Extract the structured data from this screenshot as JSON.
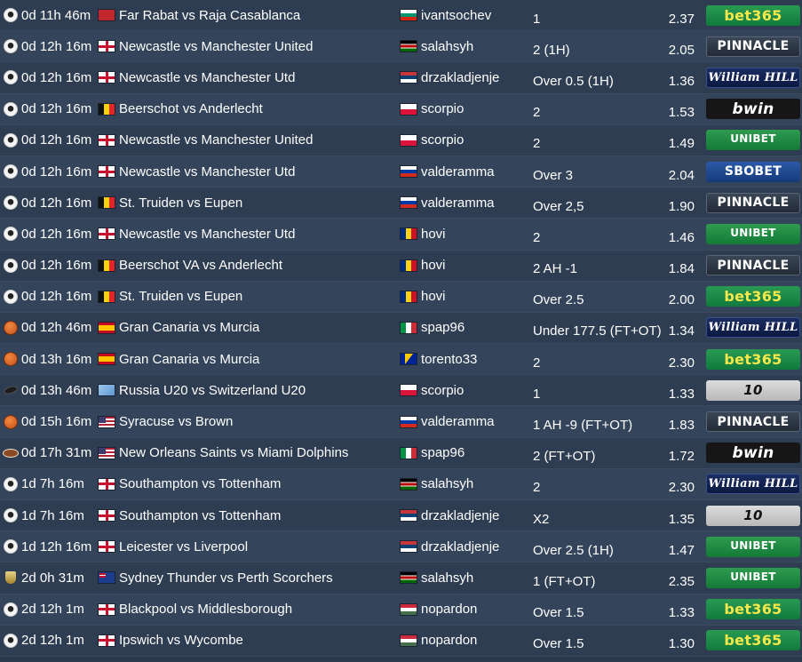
{
  "rows": [
    {
      "sport": "soccer",
      "time": "0d 11h 46m",
      "match_flag": "morocco",
      "match": "Far Rabat vs Raja Casablanca",
      "user_flag": "bulgaria",
      "user": "ivantsochev",
      "tip": "1",
      "odds": "2.37",
      "bookmaker": "bet365"
    },
    {
      "sport": "soccer",
      "time": "0d 12h 16m",
      "match_flag": "england",
      "match": "Newcastle vs Manchester United",
      "user_flag": "kenya",
      "user": "salahsyh",
      "tip": "2 (1H)",
      "odds": "2.05",
      "bookmaker": "PINNACLE"
    },
    {
      "sport": "soccer",
      "time": "0d 12h 16m",
      "match_flag": "england",
      "match": "Newcastle vs Manchester Utd",
      "user_flag": "serbia",
      "user": "drzakladjenje",
      "tip": "Over 0.5 (1H)",
      "odds": "1.36",
      "bookmaker": "William HILL"
    },
    {
      "sport": "soccer",
      "time": "0d 12h 16m",
      "match_flag": "belgium",
      "match": "Beerschot vs Anderlecht",
      "user_flag": "poland",
      "user": "scorpio",
      "tip": "2",
      "odds": "1.53",
      "bookmaker": "bwin"
    },
    {
      "sport": "soccer",
      "time": "0d 12h 16m",
      "match_flag": "england",
      "match": "Newcastle vs Manchester United",
      "user_flag": "poland",
      "user": "scorpio",
      "tip": "2",
      "odds": "1.49",
      "bookmaker": "UNIBET"
    },
    {
      "sport": "soccer",
      "time": "0d 12h 16m",
      "match_flag": "england",
      "match": "Newcastle vs Manchester Utd",
      "user_flag": "russia",
      "user": "valderamma",
      "tip": "Over 3",
      "odds": "2.04",
      "bookmaker": "SBOBET"
    },
    {
      "sport": "soccer",
      "time": "0d 12h 16m",
      "match_flag": "belgium",
      "match": "St. Truiden vs Eupen",
      "user_flag": "russia",
      "user": "valderamma",
      "tip": "Over 2,5",
      "odds": "1.90",
      "bookmaker": "PINNACLE"
    },
    {
      "sport": "soccer",
      "time": "0d 12h 16m",
      "match_flag": "england",
      "match": "Newcastle vs Manchester Utd",
      "user_flag": "romania",
      "user": "hovi",
      "tip": "2",
      "odds": "1.46",
      "bookmaker": "UNIBET"
    },
    {
      "sport": "soccer",
      "time": "0d 12h 16m",
      "match_flag": "belgium",
      "match": "Beerschot VA vs Anderlecht",
      "user_flag": "romania",
      "user": "hovi",
      "tip": "2 AH -1",
      "odds": "1.84",
      "bookmaker": "PINNACLE"
    },
    {
      "sport": "soccer",
      "time": "0d 12h 16m",
      "match_flag": "belgium",
      "match": "St. Truiden vs Eupen",
      "user_flag": "romania",
      "user": "hovi",
      "tip": "Over 2.5",
      "odds": "2.00",
      "bookmaker": "bet365"
    },
    {
      "sport": "basketball",
      "time": "0d 12h 46m",
      "match_flag": "spain",
      "match": "Gran Canaria vs Murcia",
      "user_flag": "italy",
      "user": "spap96",
      "tip": "Under 177.5 (FT+OT)",
      "odds": "1.34",
      "bookmaker": "William HILL"
    },
    {
      "sport": "basketball",
      "time": "0d 13h 16m",
      "match_flag": "spain",
      "match": "Gran Canaria vs Murcia",
      "user_flag": "bosnia",
      "user": "torento33",
      "tip": "2",
      "odds": "2.30",
      "bookmaker": "bet365"
    },
    {
      "sport": "hockey",
      "time": "0d 13h 46m",
      "match_flag": "world",
      "match": "Russia U20 vs Switzerland U20",
      "user_flag": "poland",
      "user": "scorpio",
      "tip": "1",
      "odds": "1.33",
      "bookmaker": "10"
    },
    {
      "sport": "basketball",
      "time": "0d 15h 16m",
      "match_flag": "usa",
      "match": "Syracuse vs Brown",
      "user_flag": "russia",
      "user": "valderamma",
      "tip": "1 AH -9 (FT+OT)",
      "odds": "1.83",
      "bookmaker": "PINNACLE"
    },
    {
      "sport": "football",
      "time": "0d 17h 31m",
      "match_flag": "usa",
      "match": "New Orleans Saints vs Miami Dolphins",
      "user_flag": "italy",
      "user": "spap96",
      "tip": "2 (FT+OT)",
      "odds": "1.72",
      "bookmaker": "bwin"
    },
    {
      "sport": "soccer",
      "time": "1d 7h 16m",
      "match_flag": "england",
      "match": "Southampton vs Tottenham",
      "user_flag": "kenya",
      "user": "salahsyh",
      "tip": "2",
      "odds": "2.30",
      "bookmaker": "William HILL"
    },
    {
      "sport": "soccer",
      "time": "1d 7h 16m",
      "match_flag": "england",
      "match": "Southampton vs Tottenham",
      "user_flag": "serbia",
      "user": "drzakladjenje",
      "tip": "X2",
      "odds": "1.35",
      "bookmaker": "10"
    },
    {
      "sport": "soccer",
      "time": "1d 12h 16m",
      "match_flag": "england",
      "match": "Leicester vs Liverpool",
      "user_flag": "serbia",
      "user": "drzakladjenje",
      "tip": "Over 2.5 (1H)",
      "odds": "1.47",
      "bookmaker": "UNIBET"
    },
    {
      "sport": "trophy",
      "time": "2d 0h 31m",
      "match_flag": "australia",
      "match": "Sydney Thunder vs Perth Scorchers",
      "user_flag": "kenya",
      "user": "salahsyh",
      "tip": "1 (FT+OT)",
      "odds": "2.35",
      "bookmaker": "UNIBET"
    },
    {
      "sport": "soccer",
      "time": "2d 12h 1m",
      "match_flag": "england",
      "match": "Blackpool vs Middlesborough",
      "user_flag": "hungary",
      "user": "nopardon",
      "tip": "Over 1.5",
      "odds": "1.33",
      "bookmaker": "bet365"
    },
    {
      "sport": "soccer",
      "time": "2d 12h 1m",
      "match_flag": "england",
      "match": "Ipswich vs Wycombe",
      "user_flag": "hungary",
      "user": "nopardon",
      "tip": "Over 1.5",
      "odds": "1.30",
      "bookmaker": "bet365"
    }
  ]
}
